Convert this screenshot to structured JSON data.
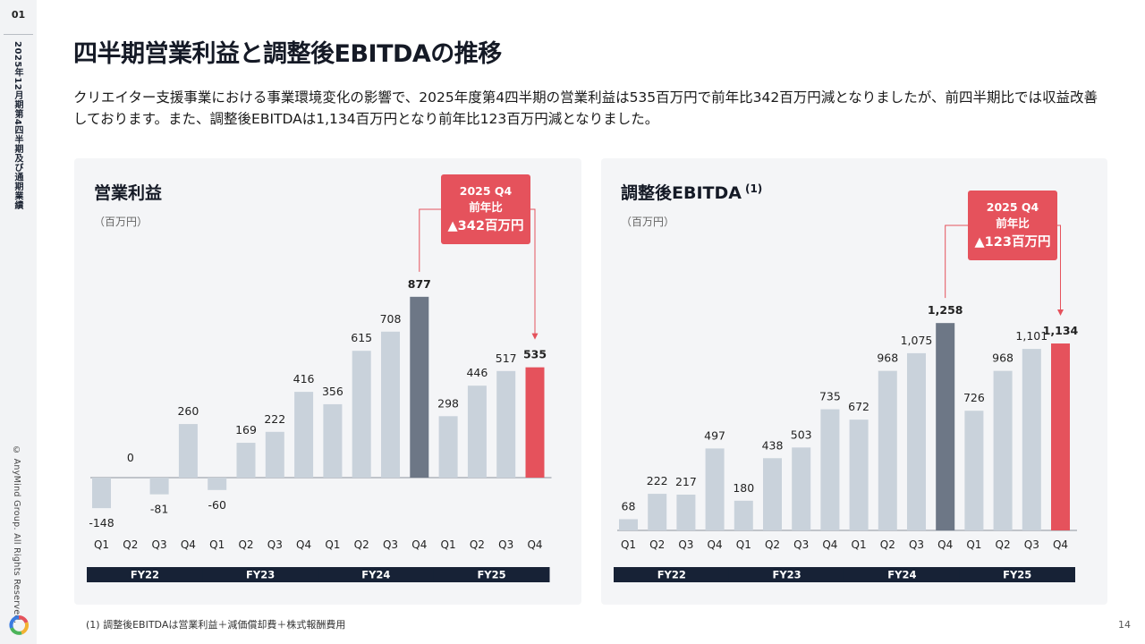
{
  "slide": {
    "number": "01",
    "section": "2025年12月期第4四半期及び通期業績",
    "copyright": "© AnyMind Group. All Rights Reserved.",
    "title": "四半期営業利益と調整後EBITDAの推移",
    "lead": "クリエイター支援事業における事業環境変化の影響で、2025年度第4四半期の営業利益は535百万円で前年比342百万円減となりましたが、前四半期比では収益改善しております。また、調整後EBITDAは1,134百万円となり前年比123百万円減となりました。",
    "footnote": "(1) 調整後EBITDAは営業利益＋減価償却費＋株式報酬費用",
    "page": "14"
  },
  "colors": {
    "bar_default": "#c9d2db",
    "bar_highlight": "#6d7786",
    "bar_current": "#e5525c",
    "callout": "#e5525c",
    "fy_bar": "#172236",
    "panel": "#f4f5f7"
  },
  "chart_data": [
    {
      "type": "bar",
      "title": "営業利益",
      "title_sup": "",
      "unit": "（百万円）",
      "categories": [
        "Q1",
        "Q2",
        "Q3",
        "Q4",
        "Q1",
        "Q2",
        "Q3",
        "Q4",
        "Q1",
        "Q2",
        "Q3",
        "Q4",
        "Q1",
        "Q2",
        "Q3",
        "Q4"
      ],
      "values": [
        -148,
        0,
        -81,
        260,
        -60,
        169,
        222,
        416,
        356,
        615,
        708,
        877,
        298,
        446,
        517,
        535
      ],
      "labels": [
        "-148",
        "0",
        "-81",
        "260",
        "-60",
        "169",
        "222",
        "416",
        "356",
        "615",
        "708",
        "877",
        "298",
        "446",
        "517",
        "535"
      ],
      "highlight_index": 11,
      "current_index": 15,
      "ylim": [
        -150,
        950
      ],
      "fiscal_years": [
        "FY22",
        "FY23",
        "FY24",
        "FY25"
      ],
      "callout": {
        "line1": "2025 Q4",
        "line2": "前年比",
        "line3": "▲342百万円"
      }
    },
    {
      "type": "bar",
      "title": "調整後EBITDA",
      "title_sup": "(1)",
      "unit": "（百万円）",
      "categories": [
        "Q1",
        "Q2",
        "Q3",
        "Q4",
        "Q1",
        "Q2",
        "Q3",
        "Q4",
        "Q1",
        "Q2",
        "Q3",
        "Q4",
        "Q1",
        "Q2",
        "Q3",
        "Q4"
      ],
      "values": [
        68,
        222,
        217,
        497,
        180,
        438,
        503,
        735,
        672,
        968,
        1075,
        1258,
        726,
        968,
        1101,
        1134
      ],
      "labels": [
        "68",
        "222",
        "217",
        "497",
        "180",
        "438",
        "503",
        "735",
        "672",
        "968",
        "1,075",
        "1,258",
        "726",
        "968",
        "1,101",
        "1,134"
      ],
      "highlight_index": 11,
      "current_index": 15,
      "ylim": [
        0,
        1400
      ],
      "fiscal_years": [
        "FY22",
        "FY23",
        "FY24",
        "FY25"
      ],
      "callout": {
        "line1": "2025 Q4",
        "line2": "前年比",
        "line3": "▲123百万円"
      }
    }
  ]
}
